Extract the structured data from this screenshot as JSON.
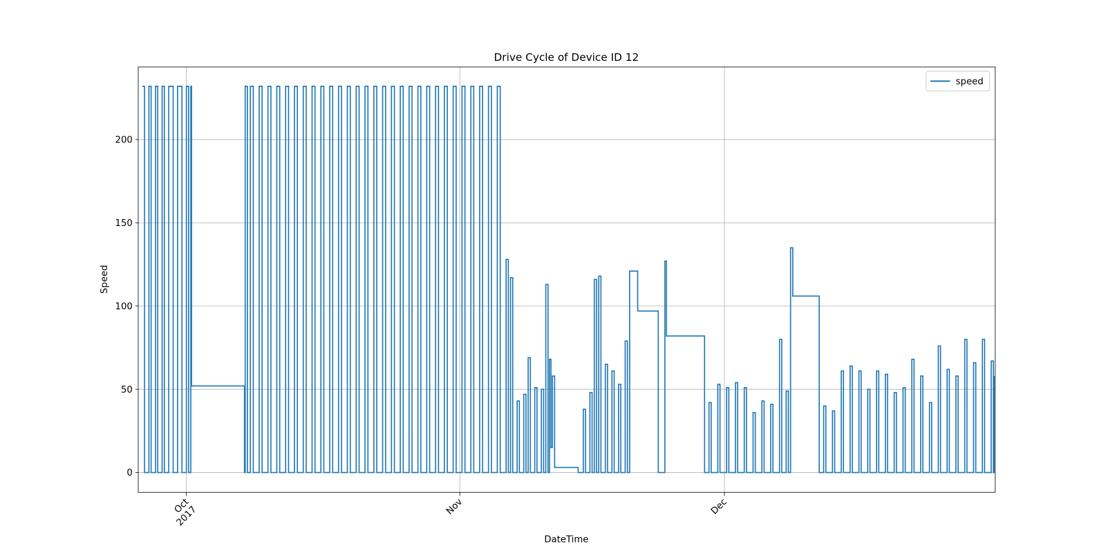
{
  "chart_data": {
    "type": "line",
    "title": "Drive Cycle of Device ID 12",
    "xlabel": "DateTime",
    "ylabel": "Speed",
    "drawstyle": "steps-post",
    "grid": true,
    "legend": "upper right",
    "xlim": [
      "2017-09-25T13:00",
      "2017-12-31T17:00"
    ],
    "ylim": [
      -11.9,
      243.6
    ],
    "yticks": [
      0,
      50,
      100,
      150,
      200
    ],
    "xticks": [
      {
        "value": "2017-10-01T00:00",
        "label": "Oct\n2017"
      },
      {
        "value": "2017-11-01T00:00",
        "label": "Nov"
      },
      {
        "value": "2017-12-01T00:00",
        "label": "Dec"
      }
    ],
    "x": [
      "2017-09-26T00:00",
      "2017-09-26T06:00",
      "2017-09-26T18:00",
      "2017-09-27T00:00",
      "2017-09-27T12:00",
      "2017-09-27T18:00",
      "2017-09-28T06:00",
      "2017-09-28T12:00",
      "2017-09-29T00:00",
      "2017-09-29T12:00",
      "2017-09-30T00:00",
      "2017-09-30T12:00",
      "2017-10-01T00:00",
      "2017-10-01T06:00",
      "2017-10-01T12:00",
      "2017-10-01T14:00",
      "2017-10-07T14:00",
      "2017-10-07T16:00",
      "2017-10-07T22:00",
      "2017-10-08T06:00",
      "2017-10-08T14:00",
      "2017-10-09T06:00",
      "2017-10-09T14:00",
      "2017-10-10T06:00",
      "2017-10-10T14:00",
      "2017-10-11T06:00",
      "2017-10-11T14:00",
      "2017-10-12T06:00",
      "2017-10-12T14:00",
      "2017-10-13T06:00",
      "2017-10-13T14:00",
      "2017-10-14T06:00",
      "2017-10-14T14:00",
      "2017-10-15T06:00",
      "2017-10-15T14:00",
      "2017-10-16T06:00",
      "2017-10-16T14:00",
      "2017-10-17T06:00",
      "2017-10-17T14:00",
      "2017-10-18T06:00",
      "2017-10-18T14:00",
      "2017-10-19T06:00",
      "2017-10-19T14:00",
      "2017-10-20T06:00",
      "2017-10-20T14:00",
      "2017-10-21T06:00",
      "2017-10-21T14:00",
      "2017-10-22T06:00",
      "2017-10-22T14:00",
      "2017-10-23T06:00",
      "2017-10-23T14:00",
      "2017-10-24T06:00",
      "2017-10-24T14:00",
      "2017-10-25T06:00",
      "2017-10-25T14:00",
      "2017-10-26T06:00",
      "2017-10-26T14:00",
      "2017-10-27T06:00",
      "2017-10-27T14:00",
      "2017-10-28T06:00",
      "2017-10-28T14:00",
      "2017-10-29T06:00",
      "2017-10-29T14:00",
      "2017-10-30T06:00",
      "2017-10-30T14:00",
      "2017-10-31T06:00",
      "2017-10-31T14:00",
      "2017-11-01T06:00",
      "2017-11-01T14:00",
      "2017-11-02T06:00",
      "2017-11-02T14:00",
      "2017-11-03T06:00",
      "2017-11-03T14:00",
      "2017-11-04T06:00",
      "2017-11-04T14:00",
      "2017-11-05T06:00",
      "2017-11-05T14:00",
      "2017-11-06T06:00",
      "2017-11-06T12:00",
      "2017-11-06T18:00",
      "2017-11-07T00:00",
      "2017-11-07T12:00",
      "2017-11-07T18:00",
      "2017-11-08T06:00",
      "2017-11-08T12:00",
      "2017-11-08T18:00",
      "2017-11-09T00:00",
      "2017-11-09T12:00",
      "2017-11-09T18:00",
      "2017-11-10T06:00",
      "2017-11-10T12:00",
      "2017-11-10T18:00",
      "2017-11-11T00:00",
      "2017-11-11T04:00",
      "2017-11-11T08:00",
      "2017-11-11T12:00",
      "2017-11-11T18:00",
      "2017-11-14T10:00",
      "2017-11-15T00:00",
      "2017-11-15T06:00",
      "2017-11-15T18:00",
      "2017-11-16T00:00",
      "2017-11-16T06:00",
      "2017-11-16T12:00",
      "2017-11-16T18:00",
      "2017-11-17T00:00",
      "2017-11-17T12:00",
      "2017-11-17T18:00",
      "2017-11-18T06:00",
      "2017-11-18T12:00",
      "2017-11-19T00:00",
      "2017-11-19T06:00",
      "2017-11-19T18:00",
      "2017-11-20T00:00",
      "2017-11-20T06:00",
      "2017-11-21T04:00",
      "2017-11-23T12:00",
      "2017-11-24T06:00",
      "2017-11-24T10:00",
      "2017-11-28T18:00",
      "2017-11-29T06:00",
      "2017-11-29T12:00",
      "2017-11-30T06:00",
      "2017-11-30T12:00",
      "2017-12-01T06:00",
      "2017-12-01T12:00",
      "2017-12-02T06:00",
      "2017-12-02T12:00",
      "2017-12-03T06:00",
      "2017-12-03T12:00",
      "2017-12-04T06:00",
      "2017-12-04T12:00",
      "2017-12-05T06:00",
      "2017-12-05T12:00",
      "2017-12-06T06:00",
      "2017-12-06T12:00",
      "2017-12-07T06:00",
      "2017-12-07T12:00",
      "2017-12-08T00:00",
      "2017-12-08T06:00",
      "2017-12-08T12:00",
      "2017-12-08T18:00",
      "2017-12-11T18:00",
      "2017-12-12T06:00",
      "2017-12-12T12:00",
      "2017-12-13T06:00",
      "2017-12-13T12:00",
      "2017-12-14T06:00",
      "2017-12-14T12:00",
      "2017-12-15T06:00",
      "2017-12-15T12:00",
      "2017-12-16T06:00",
      "2017-12-16T12:00",
      "2017-12-17T06:00",
      "2017-12-17T12:00",
      "2017-12-18T06:00",
      "2017-12-18T12:00",
      "2017-12-19T06:00",
      "2017-12-19T12:00",
      "2017-12-20T06:00",
      "2017-12-20T12:00",
      "2017-12-21T06:00",
      "2017-12-21T12:00",
      "2017-12-22T06:00",
      "2017-12-22T12:00",
      "2017-12-23T06:00",
      "2017-12-23T12:00",
      "2017-12-24T06:00",
      "2017-12-24T12:00",
      "2017-12-25T06:00",
      "2017-12-25T12:00",
      "2017-12-26T06:00",
      "2017-12-26T12:00",
      "2017-12-27T06:00",
      "2017-12-27T12:00",
      "2017-12-28T06:00",
      "2017-12-28T12:00",
      "2017-12-29T06:00",
      "2017-12-29T12:00",
      "2017-12-30T06:00",
      "2017-12-30T12:00",
      "2017-12-31T06:00",
      "2017-12-31T12:00",
      "2017-12-31T14:00"
    ],
    "series": [
      {
        "name": "speed",
        "color": "#1f77b4",
        "values": [
          232,
          0,
          232,
          0,
          232,
          0,
          232,
          0,
          232,
          0,
          232,
          0,
          232,
          0,
          232,
          52,
          0,
          232,
          0,
          232,
          0,
          232,
          0,
          232,
          0,
          232,
          0,
          232,
          0,
          232,
          0,
          232,
          0,
          232,
          0,
          232,
          0,
          232,
          0,
          232,
          0,
          232,
          0,
          232,
          0,
          232,
          0,
          232,
          0,
          232,
          0,
          232,
          0,
          232,
          0,
          232,
          0,
          232,
          0,
          232,
          0,
          232,
          0,
          232,
          0,
          232,
          0,
          232,
          0,
          232,
          0,
          232,
          0,
          232,
          0,
          232,
          0,
          128,
          0,
          117,
          0,
          43,
          0,
          47,
          0,
          69,
          0,
          51,
          0,
          50,
          0,
          113,
          0,
          68,
          15,
          58,
          3,
          0,
          38,
          0,
          48,
          0,
          116,
          0,
          118,
          0,
          65,
          0,
          61,
          0,
          53,
          0,
          79,
          0,
          121,
          97,
          0,
          127,
          82,
          0,
          42,
          0,
          53,
          0,
          51,
          0,
          54,
          0,
          51,
          0,
          36,
          0,
          43,
          0,
          41,
          0,
          80,
          0,
          49,
          0,
          135,
          106,
          0,
          40,
          0,
          37,
          0,
          61,
          0,
          64,
          0,
          61,
          0,
          50,
          0,
          61,
          0,
          59,
          0,
          48,
          0,
          51,
          0,
          68,
          0,
          58,
          0,
          42,
          0,
          76,
          0,
          62,
          0,
          58,
          0,
          80,
          0,
          66,
          0,
          80,
          0,
          67,
          0,
          58
        ]
      }
    ]
  }
}
